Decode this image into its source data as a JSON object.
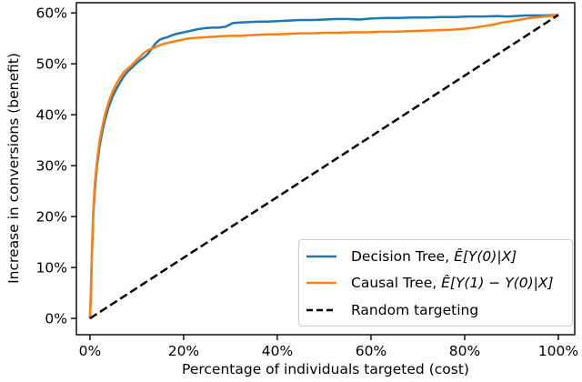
{
  "figure": {
    "xlabel": "Percentage of individuals targeted (cost)",
    "ylabel": "Increase in conversions (benefit)"
  },
  "legend": {
    "position": "lower right",
    "items": [
      {
        "id": "decision-tree",
        "text": "Decision Tree, ",
        "math": "Ê[Y(0)|X]",
        "color": "#1f77b4",
        "style": "solid"
      },
      {
        "id": "causal-tree",
        "text": "Causal Tree, ",
        "math": "Ê[Y(1) − Y(0)|X]",
        "color": "#ff7f0e",
        "style": "solid"
      },
      {
        "id": "random-targeting",
        "text": "Random targeting",
        "math": "",
        "color": "#000000",
        "style": "dashed"
      }
    ]
  },
  "chart_data": {
    "type": "line",
    "xlabel": "Percentage of individuals targeted (cost)",
    "ylabel": "Increase in conversions (benefit)",
    "x_tick_labels": [
      "0%",
      "20%",
      "40%",
      "60%",
      "80%",
      "100%"
    ],
    "x_tick_values": [
      0,
      20,
      40,
      60,
      80,
      100
    ],
    "y_tick_labels": [
      "0%",
      "10%",
      "20%",
      "30%",
      "40%",
      "50%",
      "60%"
    ],
    "y_tick_values": [
      0,
      10,
      20,
      30,
      40,
      50,
      60
    ],
    "xlim": [
      -2.9,
      103.5
    ],
    "ylim": [
      -3.2,
      62
    ],
    "grid": false,
    "legend_position": "lower right",
    "series": [
      {
        "id": "decision-tree",
        "name": "Decision Tree, Ê[Y(0)|X]",
        "color": "#1f77b4",
        "style": "solid",
        "points": [
          [
            0,
            0
          ],
          [
            0.2,
            5
          ],
          [
            0.4,
            12
          ],
          [
            0.7,
            20
          ],
          [
            1,
            25
          ],
          [
            1.5,
            30
          ],
          [
            2,
            33.5
          ],
          [
            2.6,
            36.5
          ],
          [
            3.2,
            39
          ],
          [
            4,
            41.5
          ],
          [
            4.8,
            43.5
          ],
          [
            5.6,
            45
          ],
          [
            6.4,
            46.3
          ],
          [
            7.2,
            47.5
          ],
          [
            8,
            48.4
          ],
          [
            9,
            49.3
          ],
          [
            10,
            50.2
          ],
          [
            10.8,
            50.8
          ],
          [
            11.6,
            51.3
          ],
          [
            12.4,
            52
          ],
          [
            13.2,
            53
          ],
          [
            14,
            54
          ],
          [
            14.8,
            54.7
          ],
          [
            15.6,
            55
          ],
          [
            16.4,
            55.2
          ],
          [
            17.5,
            55.6
          ],
          [
            18.6,
            55.9
          ],
          [
            20,
            56.2
          ],
          [
            21.5,
            56.5
          ],
          [
            23,
            56.8
          ],
          [
            24.5,
            57
          ],
          [
            26,
            57.1
          ],
          [
            27.5,
            57.1
          ],
          [
            29,
            57.3
          ],
          [
            30.5,
            58
          ],
          [
            32,
            58.1
          ],
          [
            34,
            58.2
          ],
          [
            36,
            58.3
          ],
          [
            38,
            58.3
          ],
          [
            40,
            58.4
          ],
          [
            42.5,
            58.5
          ],
          [
            45,
            58.6
          ],
          [
            47.5,
            58.6
          ],
          [
            50,
            58.7
          ],
          [
            52.5,
            58.8
          ],
          [
            55,
            58.8
          ],
          [
            57.5,
            58.7
          ],
          [
            60,
            58.9
          ],
          [
            63,
            59
          ],
          [
            66,
            59
          ],
          [
            69,
            59.1
          ],
          [
            72,
            59.1
          ],
          [
            75,
            59.2
          ],
          [
            78,
            59.2
          ],
          [
            81,
            59.3
          ],
          [
            84,
            59.3
          ],
          [
            87,
            59.4
          ],
          [
            89,
            59.3
          ],
          [
            91,
            59.4
          ],
          [
            93,
            59.5
          ],
          [
            95,
            59.5
          ],
          [
            97,
            59.5
          ],
          [
            100,
            59.6
          ]
        ]
      },
      {
        "id": "causal-tree",
        "name": "Causal Tree, Ê[Y(1) − Y(0)|X]",
        "color": "#ff7f0e",
        "style": "solid",
        "points": [
          [
            0,
            0
          ],
          [
            0.2,
            6
          ],
          [
            0.4,
            13
          ],
          [
            0.7,
            21
          ],
          [
            1,
            26
          ],
          [
            1.5,
            31
          ],
          [
            2,
            34.5
          ],
          [
            2.6,
            37.5
          ],
          [
            3.2,
            40
          ],
          [
            4,
            42.5
          ],
          [
            4.8,
            44.5
          ],
          [
            5.6,
            46
          ],
          [
            6.4,
            47.3
          ],
          [
            7.2,
            48.3
          ],
          [
            8,
            49
          ],
          [
            9,
            49.8
          ],
          [
            10,
            50.8
          ],
          [
            10.8,
            51.5
          ],
          [
            11.6,
            52.2
          ],
          [
            12.4,
            52.7
          ],
          [
            13.2,
            53
          ],
          [
            14,
            53.3
          ],
          [
            15,
            53.7
          ],
          [
            16,
            54
          ],
          [
            17,
            54.2
          ],
          [
            18,
            54.4
          ],
          [
            19.5,
            54.7
          ],
          [
            21,
            55
          ],
          [
            22.5,
            55.1
          ],
          [
            24,
            55.2
          ],
          [
            26,
            55.3
          ],
          [
            28,
            55.4
          ],
          [
            30,
            55.5
          ],
          [
            32,
            55.5
          ],
          [
            34,
            55.6
          ],
          [
            36,
            55.7
          ],
          [
            38,
            55.8
          ],
          [
            40,
            55.8
          ],
          [
            42.5,
            55.9
          ],
          [
            45,
            56
          ],
          [
            47.5,
            56
          ],
          [
            50,
            56.1
          ],
          [
            53,
            56.1
          ],
          [
            56,
            56.2
          ],
          [
            59,
            56.2
          ],
          [
            62,
            56.3
          ],
          [
            65,
            56.3
          ],
          [
            68,
            56.4
          ],
          [
            71,
            56.5
          ],
          [
            74,
            56.6
          ],
          [
            77,
            56.7
          ],
          [
            80,
            56.9
          ],
          [
            82,
            57.1
          ],
          [
            84,
            57.4
          ],
          [
            86,
            57.7
          ],
          [
            88,
            58.1
          ],
          [
            90,
            58.4
          ],
          [
            92,
            58.7
          ],
          [
            94,
            59
          ],
          [
            96,
            59.2
          ],
          [
            98,
            59.4
          ],
          [
            100,
            59.6
          ]
        ]
      },
      {
        "id": "random-targeting",
        "name": "Random targeting",
        "color": "#000000",
        "style": "dashed",
        "points": [
          [
            0,
            0
          ],
          [
            100,
            59.6
          ]
        ]
      }
    ]
  }
}
